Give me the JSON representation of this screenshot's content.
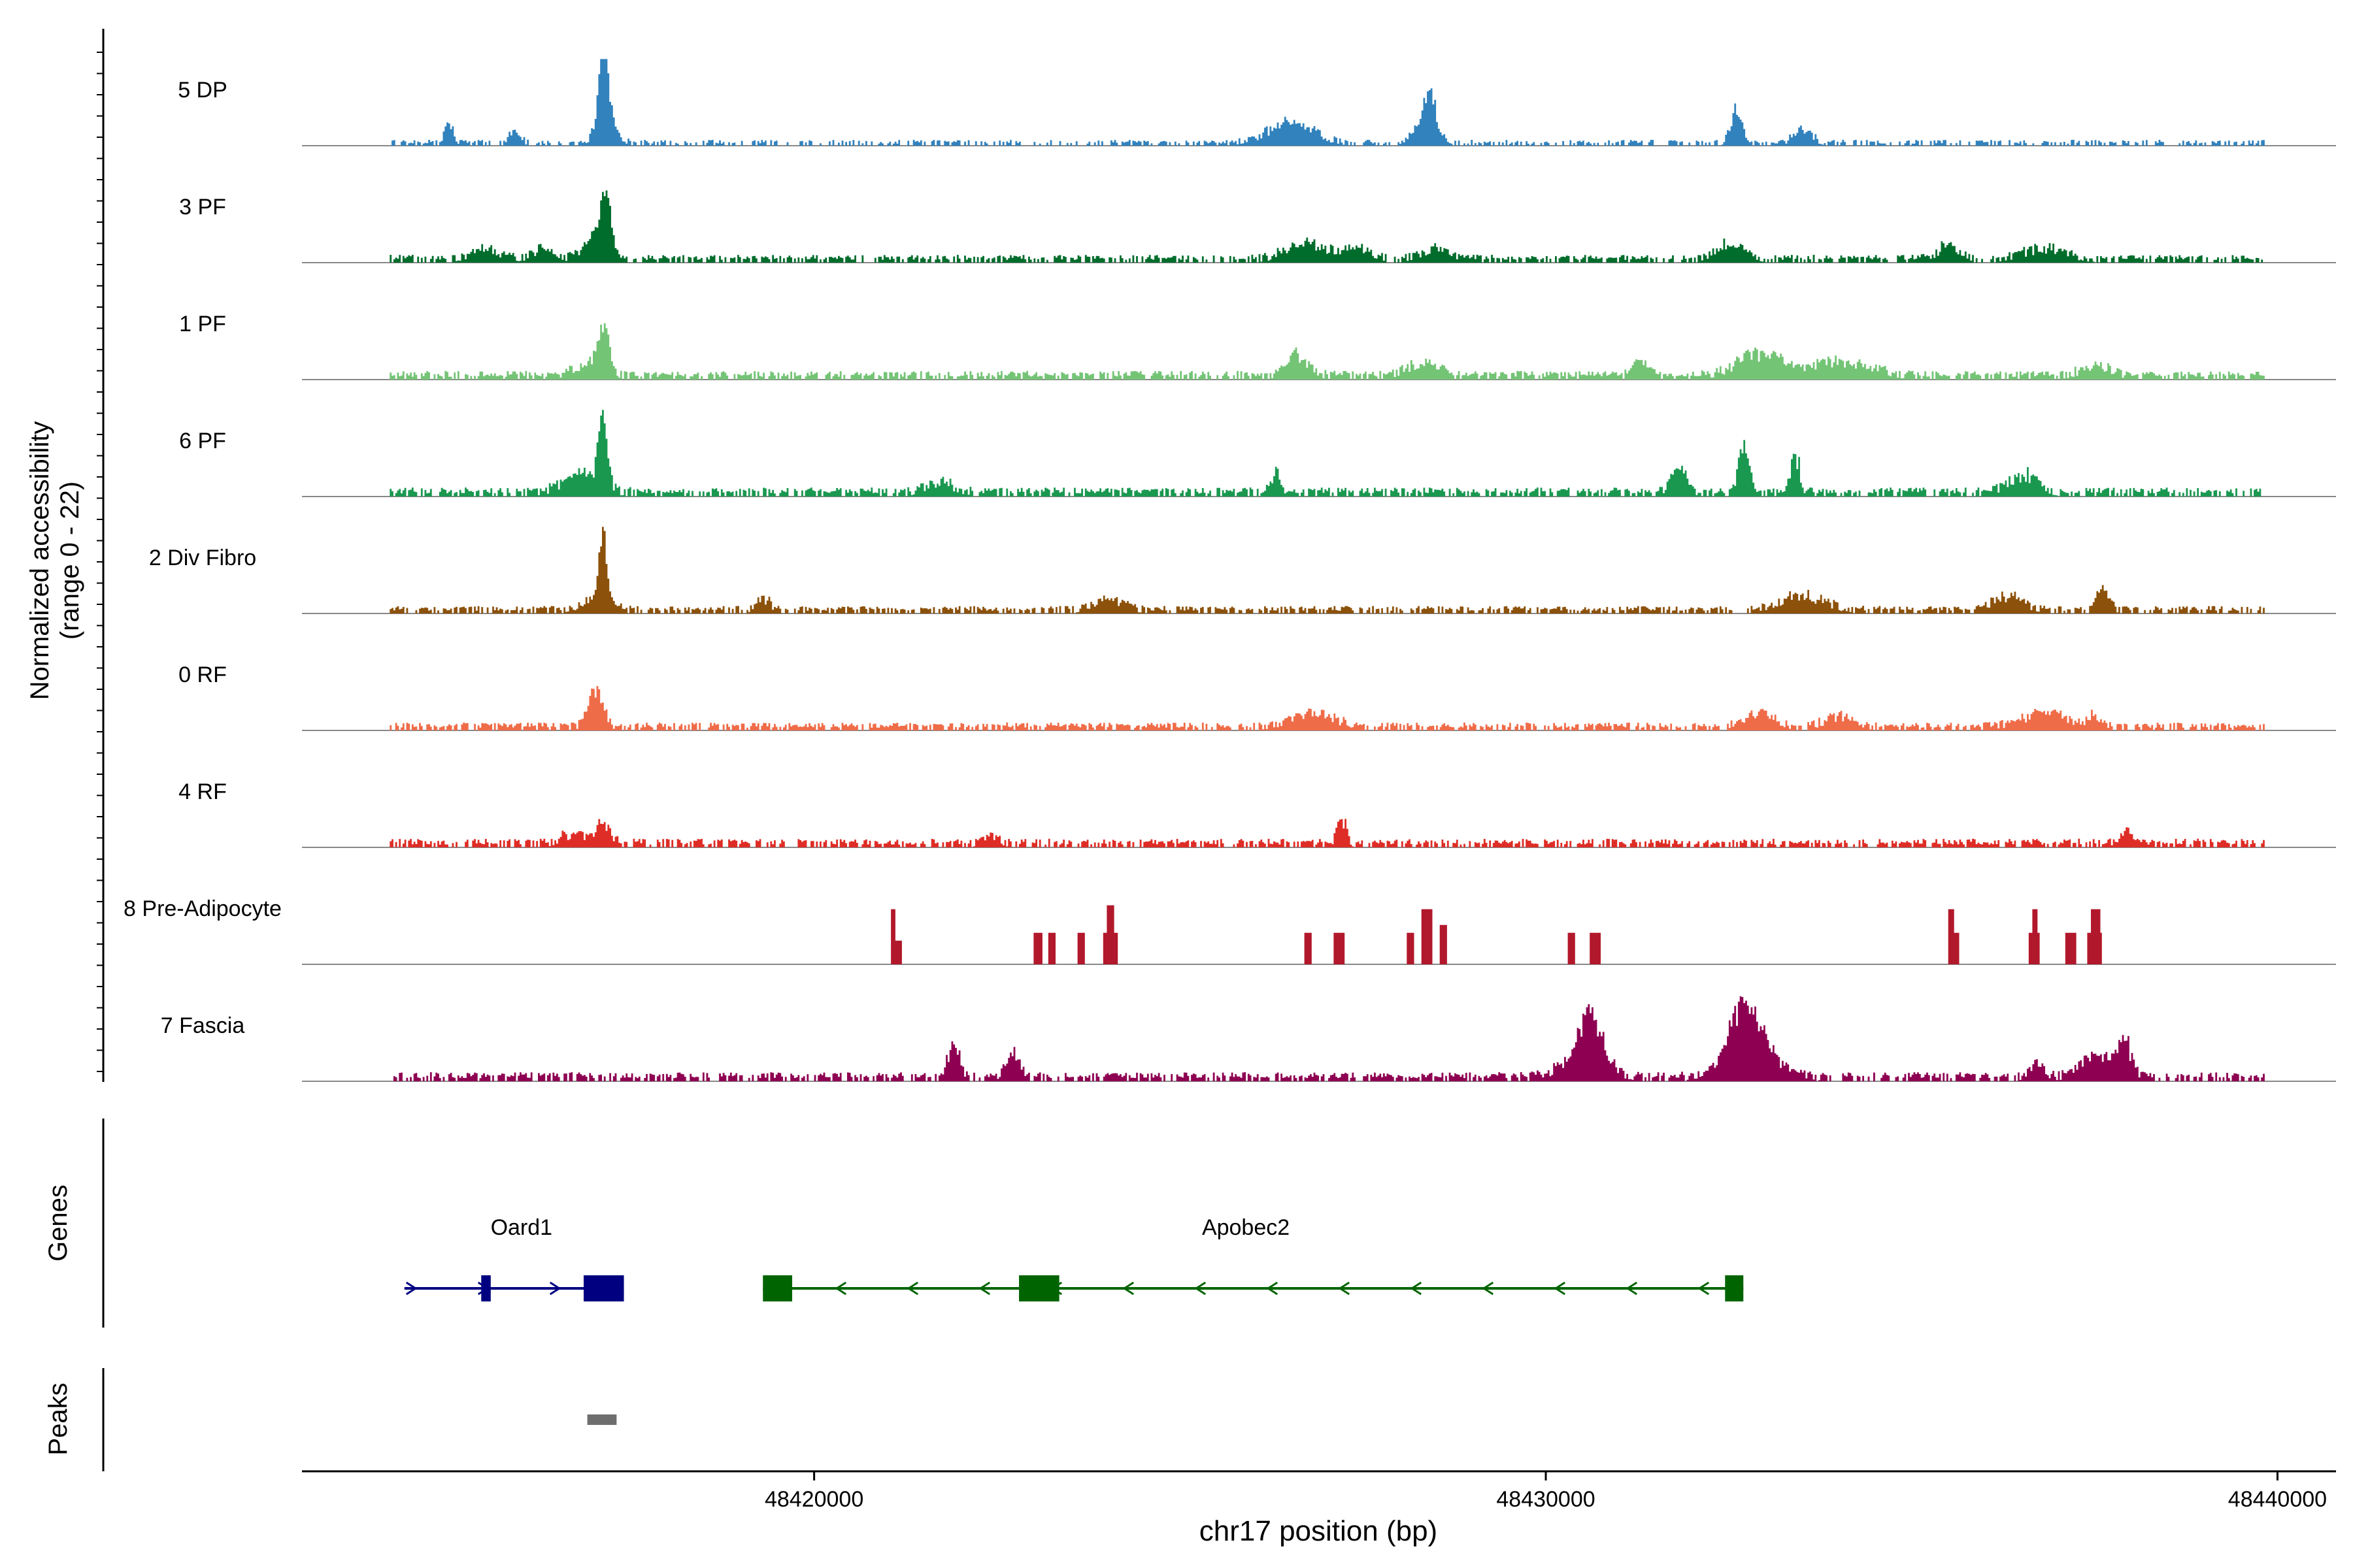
{
  "chart_data": {
    "type": "area",
    "title": "",
    "xlabel": "chr17 position (bp)",
    "ylabel_line1": "Normalized accessibility",
    "ylabel_line2": "(range 0 - 22)",
    "y_range": [
      0,
      22
    ],
    "x_range": [
      48413000,
      48440800
    ],
    "data_x_range": [
      48414200,
      48439800
    ],
    "x_ticks": [
      {
        "value": 48420000,
        "label": "48420000"
      },
      {
        "value": 48430000,
        "label": "48430000"
      },
      {
        "value": 48440000,
        "label": "48440000"
      }
    ],
    "tracks": [
      {
        "name": "5 DP",
        "color": "#3182bd",
        "baseline": 0.5,
        "noise": 1.0,
        "gap": 0.45,
        "peaks": [
          [
            48415000,
            5,
            60
          ],
          [
            48415900,
            4,
            70
          ],
          [
            48417100,
            8,
            70
          ],
          [
            48417100,
            20,
            40
          ],
          [
            48417150,
            9,
            120
          ],
          [
            48426500,
            6,
            300
          ],
          [
            48428400,
            10,
            80
          ],
          [
            48428350,
            5,
            160
          ],
          [
            48432600,
            9,
            80
          ],
          [
            48433500,
            4,
            120
          ]
        ]
      },
      {
        "name": "3 PF",
        "color": "#006d2c",
        "baseline": 0.7,
        "noise": 1.3,
        "gap": 0.35,
        "peaks": [
          [
            48415500,
            3,
            200
          ],
          [
            48416300,
            3,
            150
          ],
          [
            48417000,
            7,
            150
          ],
          [
            48417150,
            16,
            60
          ],
          [
            48426700,
            5,
            250
          ],
          [
            48427400,
            3,
            200
          ],
          [
            48428500,
            3,
            200
          ],
          [
            48432500,
            4,
            200
          ],
          [
            48435500,
            4,
            150
          ],
          [
            48436800,
            3,
            300
          ]
        ]
      },
      {
        "name": "1 PF",
        "color": "#74c476",
        "baseline": 0.7,
        "noise": 1.5,
        "gap": 0.25,
        "peaks": [
          [
            48417100,
            12,
            80
          ],
          [
            48416900,
            3,
            200
          ],
          [
            48426600,
            6,
            150
          ],
          [
            48428300,
            4,
            200
          ],
          [
            48431300,
            5,
            100
          ],
          [
            48432900,
            6,
            300
          ],
          [
            48434000,
            4,
            400
          ],
          [
            48437500,
            3,
            200
          ]
        ]
      },
      {
        "name": "6 PF",
        "color": "#1a9850",
        "baseline": 0.8,
        "noise": 1.5,
        "gap": 0.3,
        "peaks": [
          [
            48417100,
            19,
            60
          ],
          [
            48416800,
            5,
            250
          ],
          [
            48421700,
            3,
            200
          ],
          [
            48426300,
            6,
            60
          ],
          [
            48431800,
            7,
            100
          ],
          [
            48432700,
            12,
            80
          ],
          [
            48433400,
            10,
            60
          ],
          [
            48436500,
            5,
            200
          ]
        ]
      },
      {
        "name": "2 Div Fibro",
        "color": "#8c510a",
        "baseline": 0.7,
        "noise": 1.2,
        "gap": 0.3,
        "peaks": [
          [
            48417100,
            20,
            50
          ],
          [
            48417000,
            3,
            200
          ],
          [
            48424000,
            3,
            200
          ],
          [
            48433500,
            4,
            300
          ],
          [
            48436300,
            4,
            200
          ],
          [
            48437600,
            6,
            80
          ],
          [
            48419300,
            3,
            100
          ]
        ]
      },
      {
        "name": "0 RF",
        "color": "#ef6c49",
        "baseline": 0.7,
        "noise": 1.3,
        "gap": 0.3,
        "peaks": [
          [
            48417000,
            10,
            100
          ],
          [
            48426800,
            4,
            300
          ],
          [
            48432900,
            4,
            200
          ],
          [
            48434000,
            3,
            200
          ],
          [
            48436800,
            4,
            300
          ],
          [
            48437500,
            3,
            100
          ]
        ]
      },
      {
        "name": "4 RF",
        "color": "#de2d26",
        "baseline": 0.7,
        "noise": 1.5,
        "gap": 0.3,
        "peaks": [
          [
            48416700,
            3,
            150
          ],
          [
            48417100,
            6,
            100
          ],
          [
            48427200,
            7,
            60
          ],
          [
            48437900,
            3,
            100
          ],
          [
            48422400,
            3,
            100
          ]
        ]
      },
      {
        "name": "8 Pre-Adipocyte",
        "color": "#b2182b",
        "baseline": 0,
        "noise": 0,
        "gap": 1,
        "peaks": [],
        "bars": [
          [
            48421050,
            48421200,
            6
          ],
          [
            48421050,
            48421110,
            14
          ],
          [
            48423000,
            48423120,
            8
          ],
          [
            48423200,
            48423300,
            8
          ],
          [
            48423600,
            48423700,
            8
          ],
          [
            48423950,
            48424150,
            8
          ],
          [
            48424000,
            48424100,
            15
          ],
          [
            48426700,
            48426800,
            8
          ],
          [
            48427100,
            48427250,
            8
          ],
          [
            48428100,
            48428200,
            8
          ],
          [
            48428300,
            48428450,
            14
          ],
          [
            48428550,
            48428650,
            10
          ],
          [
            48430300,
            48430400,
            8
          ],
          [
            48430600,
            48430750,
            8
          ],
          [
            48435500,
            48435650,
            8
          ],
          [
            48435500,
            48435580,
            14
          ],
          [
            48436600,
            48436750,
            8
          ],
          [
            48436650,
            48436720,
            14
          ],
          [
            48437100,
            48437250,
            8
          ],
          [
            48437400,
            48437600,
            8
          ],
          [
            48437450,
            48437580,
            14
          ]
        ]
      },
      {
        "name": "7 Fascia",
        "color": "#8e0152",
        "baseline": 0.8,
        "noise": 1.5,
        "gap": 0.3,
        "peaks": [
          [
            48421900,
            9,
            80
          ],
          [
            48422700,
            6,
            100
          ],
          [
            48430600,
            13,
            150
          ],
          [
            48430500,
            5,
            300
          ],
          [
            48432700,
            14,
            180
          ],
          [
            48432800,
            8,
            350
          ],
          [
            48437500,
            7,
            200
          ],
          [
            48437900,
            9,
            100
          ],
          [
            48436700,
            4,
            100
          ]
        ]
      }
    ],
    "genes_label": "Genes",
    "peaks_label": "Peaks",
    "genes": [
      {
        "name": "Oard1",
        "strand": "+",
        "color": "#000080",
        "start": 48414400,
        "end": 48417400,
        "exons": [
          [
            48415450,
            48415580
          ],
          [
            48416850,
            48417400
          ]
        ],
        "label_pos": 48416000
      },
      {
        "name": "Apobec2",
        "strand": "-",
        "color": "#006400",
        "start": 48419300,
        "end": 48432700,
        "exons": [
          [
            48419300,
            48419700
          ],
          [
            48422800,
            48423350
          ],
          [
            48432450,
            48432700
          ]
        ],
        "label_pos": 48425900
      }
    ],
    "peak_regions": [
      [
        48416900,
        48417300
      ]
    ]
  }
}
